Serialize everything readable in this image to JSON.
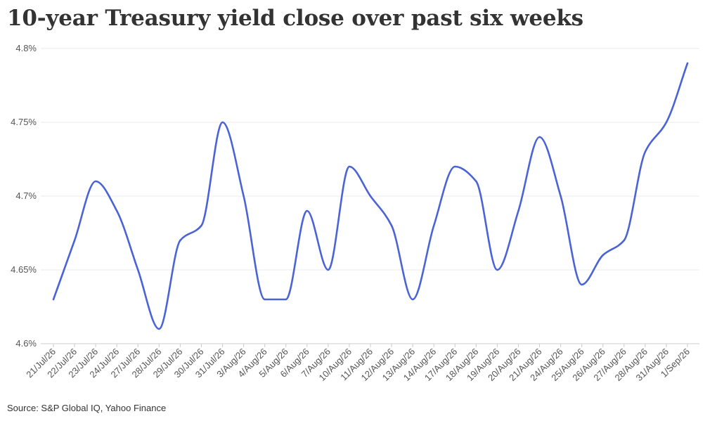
{
  "chart_data": {
    "type": "line",
    "title": "10-year Treasury yield close over past six weeks",
    "source": "Source: S&P Global IQ, Yahoo Finance",
    "categories": [
      "21/Jul/26",
      "22/Jul/26",
      "23/Jul/26",
      "24/Jul/26",
      "27/Jul/26",
      "28/Jul/26",
      "29/Jul/26",
      "30/Jul/26",
      "31/Jul/26",
      "3/Aug/26",
      "4/Aug/26",
      "5/Aug/26",
      "6/Aug/26",
      "7/Aug/26",
      "10/Aug/26",
      "11/Aug/26",
      "12/Aug/26",
      "13/Aug/26",
      "14/Aug/26",
      "17/Aug/26",
      "18/Aug/26",
      "19/Aug/26",
      "20/Aug/26",
      "21/Aug/26",
      "24/Aug/26",
      "25/Aug/26",
      "26/Aug/26",
      "27/Aug/26",
      "28/Aug/26",
      "31/Aug/26",
      "1/Sep/26"
    ],
    "values": [
      4.63,
      4.67,
      4.71,
      4.69,
      4.65,
      4.61,
      4.67,
      4.68,
      4.75,
      4.7,
      4.63,
      4.63,
      4.69,
      4.65,
      4.72,
      4.7,
      4.68,
      4.63,
      4.68,
      4.72,
      4.71,
      4.65,
      4.69,
      4.74,
      4.7,
      4.64,
      4.66,
      4.67,
      4.73,
      4.75,
      4.79
    ],
    "yticks": [
      "4.6%",
      "4.65%",
      "4.7%",
      "4.75%",
      "4.8%"
    ],
    "ytick_values": [
      4.6,
      4.65,
      4.7,
      4.75,
      4.8
    ],
    "ylim": [
      4.6,
      4.8
    ],
    "grid": true,
    "line_color": "#4a63d8"
  }
}
